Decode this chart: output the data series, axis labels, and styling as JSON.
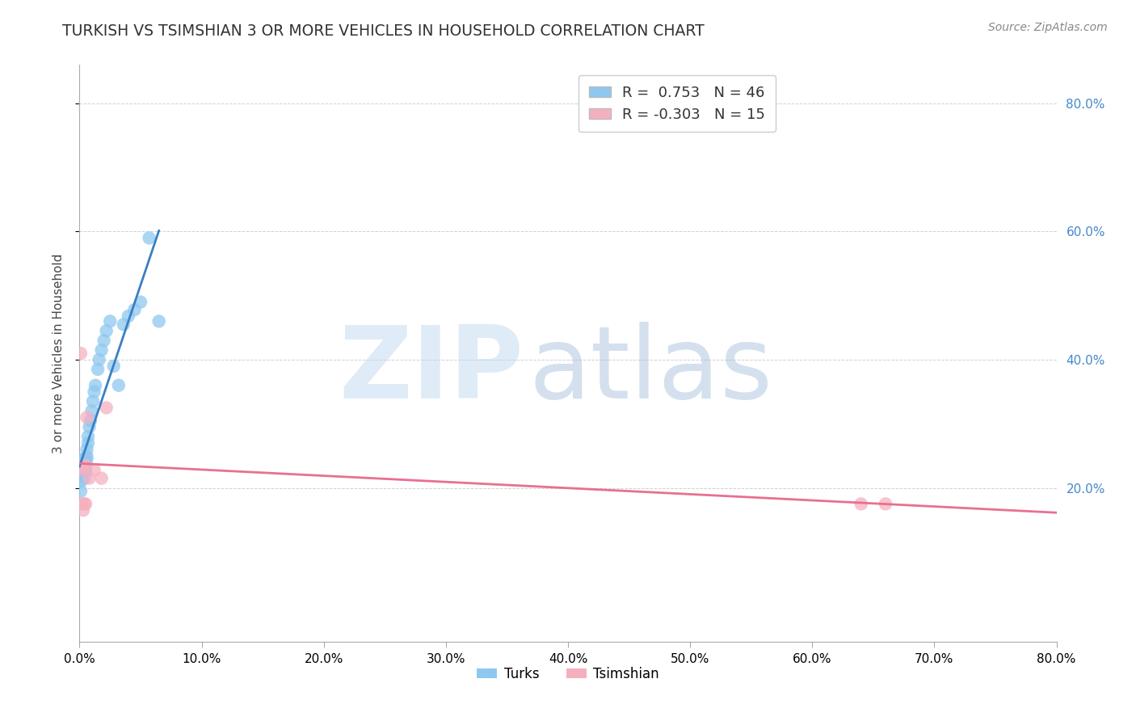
{
  "title": "TURKISH VS TSIMSHIAN 3 OR MORE VEHICLES IN HOUSEHOLD CORRELATION CHART",
  "source": "Source: ZipAtlas.com",
  "ylabel": "3 or more Vehicles in Household",
  "xlim": [
    0.0,
    0.8
  ],
  "ylim": [
    -0.04,
    0.86
  ],
  "x_ticks": [
    0.0,
    0.1,
    0.2,
    0.3,
    0.4,
    0.5,
    0.6,
    0.7,
    0.8
  ],
  "y_ticks_right": [
    0.2,
    0.4,
    0.6,
    0.8
  ],
  "turks_R": 0.753,
  "turks_N": 46,
  "tsimshian_R": -0.303,
  "tsimshian_N": 15,
  "turks_color": "#8EC8F0",
  "tsimshian_color": "#F5B0C0",
  "turks_line_color": "#3A7FC1",
  "tsimshian_line_color": "#E87090",
  "background_color": "#ffffff",
  "turks_x": [
    0.001,
    0.001,
    0.001,
    0.002,
    0.002,
    0.002,
    0.002,
    0.003,
    0.003,
    0.003,
    0.003,
    0.003,
    0.004,
    0.004,
    0.004,
    0.004,
    0.004,
    0.005,
    0.005,
    0.005,
    0.005,
    0.006,
    0.006,
    0.006,
    0.007,
    0.007,
    0.008,
    0.009,
    0.01,
    0.011,
    0.012,
    0.013,
    0.015,
    0.016,
    0.018,
    0.02,
    0.022,
    0.025,
    0.028,
    0.032,
    0.036,
    0.04,
    0.045,
    0.05,
    0.057,
    0.065
  ],
  "turks_y": [
    0.23,
    0.21,
    0.195,
    0.235,
    0.228,
    0.24,
    0.22,
    0.23,
    0.238,
    0.245,
    0.225,
    0.235,
    0.228,
    0.238,
    0.245,
    0.225,
    0.215,
    0.23,
    0.24,
    0.235,
    0.225,
    0.25,
    0.26,
    0.245,
    0.27,
    0.28,
    0.295,
    0.305,
    0.32,
    0.335,
    0.35,
    0.36,
    0.385,
    0.4,
    0.415,
    0.43,
    0.445,
    0.46,
    0.39,
    0.36,
    0.455,
    0.468,
    0.478,
    0.49,
    0.59,
    0.46
  ],
  "tsimshian_x": [
    0.001,
    0.002,
    0.002,
    0.003,
    0.003,
    0.004,
    0.005,
    0.005,
    0.006,
    0.008,
    0.012,
    0.018,
    0.022,
    0.64,
    0.66
  ],
  "tsimshian_y": [
    0.41,
    0.23,
    0.175,
    0.23,
    0.165,
    0.175,
    0.235,
    0.175,
    0.31,
    0.215,
    0.228,
    0.215,
    0.325,
    0.175,
    0.175
  ],
  "turks_line_x": [
    0.0,
    0.065
  ],
  "tsimshian_line_x": [
    0.0,
    0.8
  ]
}
